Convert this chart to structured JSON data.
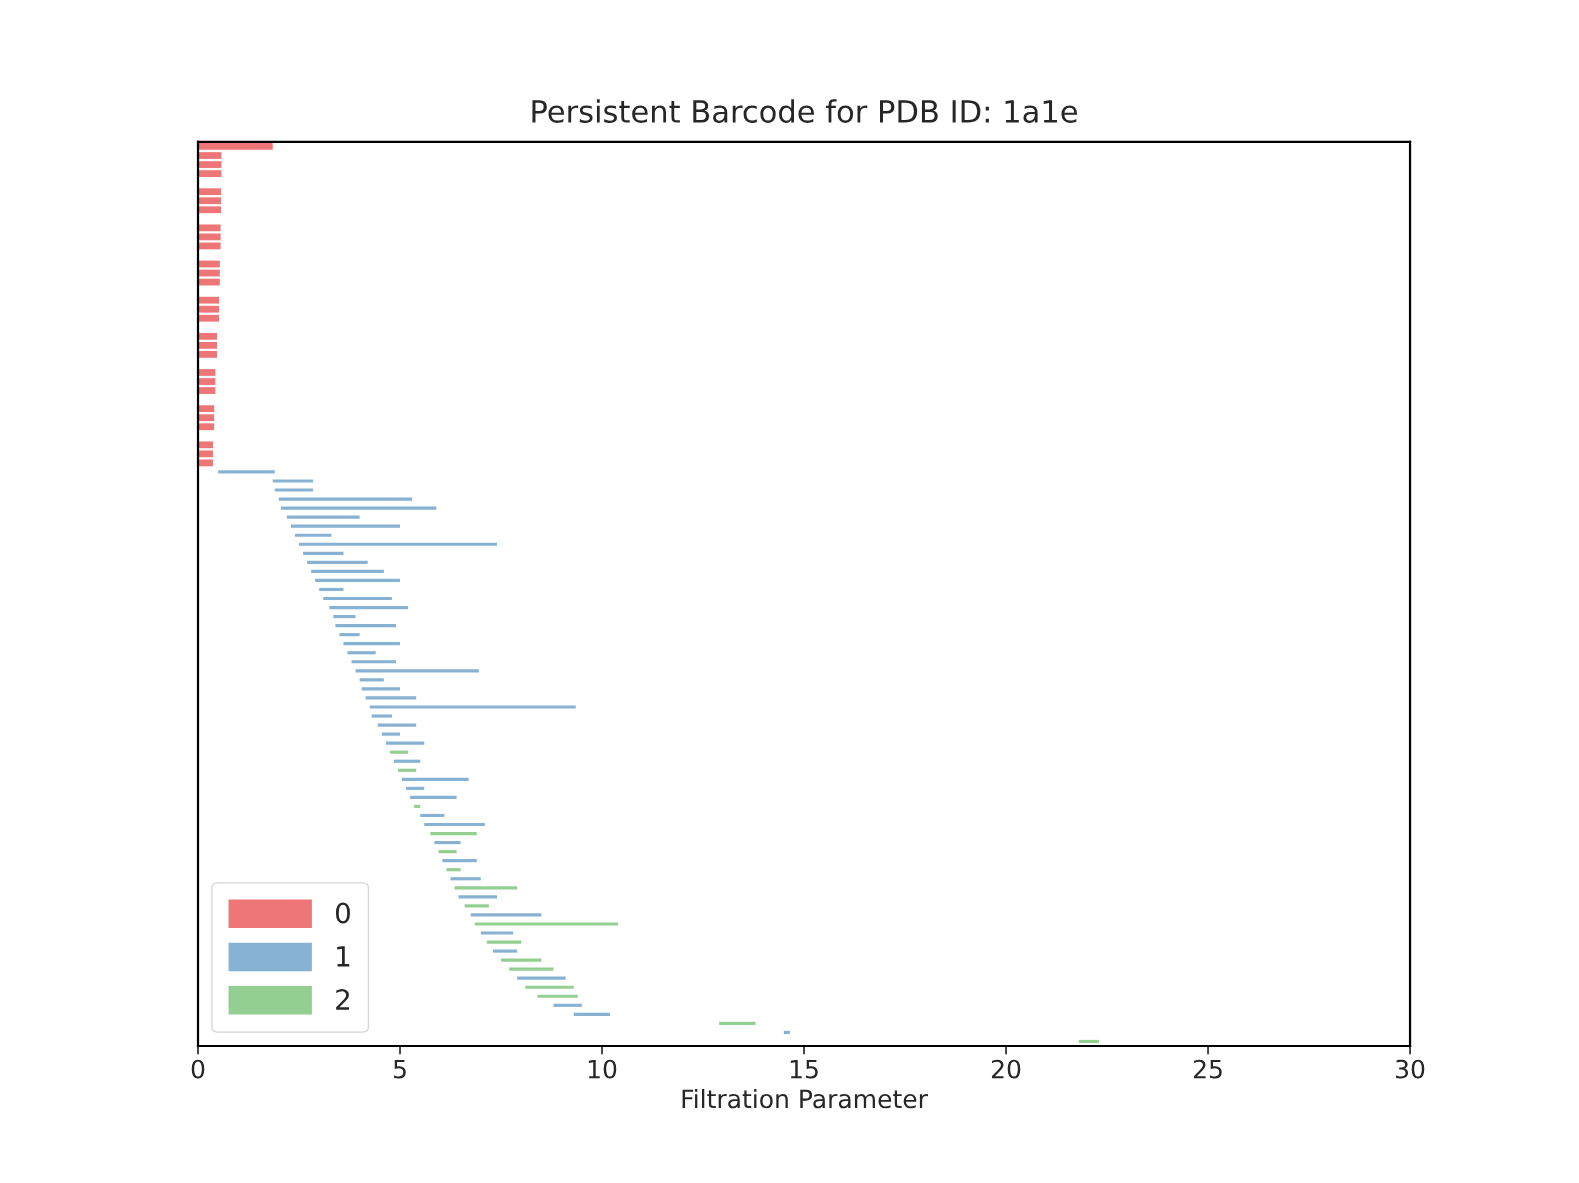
{
  "chart_data": {
    "type": "bar",
    "orientation": "horizontal",
    "title": "Persistent Barcode for PDB ID: 1a1e",
    "xlabel": "Filtration Parameter",
    "categories": [
      null,
      null,
      null,
      null,
      null,
      null,
      null,
      null,
      null,
      null,
      null,
      null,
      null,
      null,
      null,
      null,
      null,
      null,
      null,
      null,
      null,
      null,
      null,
      null,
      null,
      null,
      null,
      null,
      null,
      null,
      null,
      null,
      null,
      null,
      null,
      null,
      null,
      null,
      null,
      null,
      null,
      null,
      null,
      null,
      null,
      null,
      null,
      null,
      null,
      null,
      null,
      null,
      null,
      null,
      null,
      null,
      null,
      null,
      null,
      null,
      null,
      null,
      null,
      null,
      null,
      null,
      null,
      null,
      null,
      null,
      null,
      null,
      null,
      null,
      null,
      null,
      null,
      null,
      null,
      null,
      null,
      null,
      null,
      null,
      null,
      null,
      null,
      null,
      null,
      null,
      null,
      null,
      null,
      null,
      null,
      null,
      null,
      null,
      null,
      null
    ],
    "series": [
      {
        "name": "0",
        "color": "#ef7677",
        "values": [
          1.85,
          0.58,
          0.58,
          0.58,
          null,
          0.57,
          0.57,
          0.57,
          null,
          0.56,
          0.56,
          0.56,
          null,
          0.54,
          0.54,
          0.54,
          null,
          0.52,
          0.52,
          0.52,
          null,
          0.47,
          0.47,
          0.47,
          null,
          0.43,
          0.43,
          0.43,
          null,
          0.4,
          0.4,
          0.4,
          null,
          0.37,
          0.37,
          0.37,
          null,
          null,
          null,
          null,
          null,
          null,
          null,
          null,
          null,
          null,
          null,
          null,
          null,
          null,
          null,
          null,
          null,
          null,
          null,
          null,
          null,
          null,
          null,
          null,
          null,
          null,
          null,
          null,
          null,
          null,
          null,
          null,
          null,
          null,
          null,
          null,
          null,
          null,
          null,
          null,
          null,
          null,
          null,
          null,
          null,
          null,
          null,
          null,
          null,
          null,
          null,
          null,
          null,
          null,
          null,
          null,
          null,
          null,
          null,
          null,
          null,
          null,
          null,
          null
        ],
        "base": [
          0,
          0,
          0,
          0,
          null,
          0,
          0,
          0,
          null,
          0,
          0,
          0,
          null,
          0,
          0,
          0,
          null,
          0,
          0,
          0,
          null,
          0,
          0,
          0,
          null,
          0,
          0,
          0,
          null,
          0,
          0,
          0,
          null,
          0,
          0,
          0,
          null,
          null,
          null,
          null,
          null,
          null,
          null,
          null,
          null,
          null,
          null,
          null,
          null,
          null,
          null,
          null,
          null,
          null,
          null,
          null,
          null,
          null,
          null,
          null,
          null,
          null,
          null,
          null,
          null,
          null,
          null,
          null,
          null,
          null,
          null,
          null,
          null,
          null,
          null,
          null,
          null,
          null,
          null,
          null,
          null,
          null,
          null,
          null,
          null,
          null,
          null,
          null,
          null,
          null,
          null,
          null,
          null,
          null,
          null,
          null,
          null,
          null,
          null,
          null
        ]
      },
      {
        "name": "1",
        "color": "#87b2d4",
        "values": [
          null,
          null,
          null,
          null,
          null,
          null,
          null,
          null,
          null,
          null,
          null,
          null,
          null,
          null,
          null,
          null,
          null,
          null,
          null,
          null,
          null,
          null,
          null,
          null,
          null,
          null,
          null,
          null,
          null,
          null,
          null,
          null,
          null,
          null,
          null,
          null,
          1.4,
          1.0,
          0.95,
          3.3,
          3.85,
          1.8,
          2.7,
          0.9,
          4.9,
          1.0,
          1.5,
          1.8,
          2.1,
          0.6,
          1.7,
          1.95,
          0.55,
          1.5,
          0.5,
          1.4,
          0.7,
          1.1,
          3.05,
          0.6,
          0.95,
          1.25,
          5.1,
          0.5,
          0.95,
          0.45,
          0.95,
          null,
          0.65,
          null,
          1.65,
          0.45,
          1.15,
          null,
          0.6,
          1.5,
          null,
          0.65,
          null,
          0.85,
          null,
          0.75,
          null,
          0.95,
          null,
          1.75,
          null,
          0.8,
          null,
          0.6,
          null,
          null,
          1.2,
          null,
          null,
          0.7,
          0.9,
          null,
          0.15,
          null
        ],
        "base": [
          null,
          null,
          null,
          null,
          null,
          null,
          null,
          null,
          null,
          null,
          null,
          null,
          null,
          null,
          null,
          null,
          null,
          null,
          null,
          null,
          null,
          null,
          null,
          null,
          null,
          null,
          null,
          null,
          null,
          null,
          null,
          null,
          null,
          null,
          null,
          null,
          0.5,
          1.85,
          1.9,
          2.0,
          2.05,
          2.2,
          2.3,
          2.4,
          2.5,
          2.6,
          2.7,
          2.8,
          2.9,
          3.0,
          3.1,
          3.25,
          3.35,
          3.4,
          3.5,
          3.6,
          3.7,
          3.8,
          3.9,
          4.0,
          4.05,
          4.15,
          4.25,
          4.3,
          4.45,
          4.55,
          4.65,
          null,
          4.85,
          null,
          5.05,
          5.15,
          5.25,
          null,
          5.5,
          5.6,
          null,
          5.85,
          null,
          6.05,
          null,
          6.25,
          null,
          6.45,
          null,
          6.75,
          null,
          7.0,
          null,
          7.3,
          null,
          null,
          7.9,
          null,
          null,
          8.8,
          9.3,
          null,
          14.5,
          null
        ]
      },
      {
        "name": "2",
        "color": "#94cf92",
        "values": [
          null,
          null,
          null,
          null,
          null,
          null,
          null,
          null,
          null,
          null,
          null,
          null,
          null,
          null,
          null,
          null,
          null,
          null,
          null,
          null,
          null,
          null,
          null,
          null,
          null,
          null,
          null,
          null,
          null,
          null,
          null,
          null,
          null,
          null,
          null,
          null,
          null,
          null,
          null,
          null,
          null,
          null,
          null,
          null,
          null,
          null,
          null,
          null,
          null,
          null,
          null,
          null,
          null,
          null,
          null,
          null,
          null,
          null,
          null,
          null,
          null,
          null,
          null,
          null,
          null,
          null,
          null,
          0.45,
          null,
          0.45,
          null,
          null,
          null,
          0.15,
          null,
          null,
          1.15,
          null,
          0.45,
          null,
          0.35,
          null,
          1.55,
          null,
          0.6,
          null,
          3.55,
          null,
          0.85,
          null,
          1.0,
          1.1,
          null,
          1.2,
          1.0,
          null,
          null,
          0.9,
          null,
          0.5
        ],
        "base": [
          null,
          null,
          null,
          null,
          null,
          null,
          null,
          null,
          null,
          null,
          null,
          null,
          null,
          null,
          null,
          null,
          null,
          null,
          null,
          null,
          null,
          null,
          null,
          null,
          null,
          null,
          null,
          null,
          null,
          null,
          null,
          null,
          null,
          null,
          null,
          null,
          null,
          null,
          null,
          null,
          null,
          null,
          null,
          null,
          null,
          null,
          null,
          null,
          null,
          null,
          null,
          null,
          null,
          null,
          null,
          null,
          null,
          null,
          null,
          null,
          null,
          null,
          null,
          null,
          null,
          null,
          null,
          4.75,
          null,
          4.95,
          null,
          null,
          null,
          5.35,
          null,
          null,
          5.75,
          null,
          5.95,
          null,
          6.15,
          null,
          6.35,
          null,
          6.6,
          null,
          6.85,
          null,
          7.15,
          null,
          7.5,
          7.7,
          null,
          8.1,
          8.4,
          null,
          null,
          12.9,
          null,
          21.8
        ]
      }
    ],
    "xlim": [
      0,
      30
    ],
    "xticks": [
      0,
      5,
      10,
      15,
      20,
      25,
      30
    ],
    "tick_labels": "x",
    "grid": false,
    "legend": "bottom left"
  }
}
